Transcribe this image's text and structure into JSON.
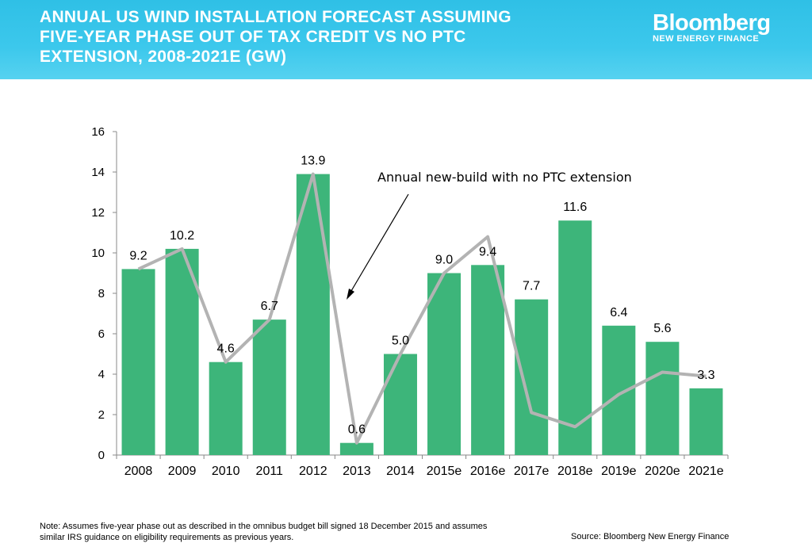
{
  "header": {
    "title_lines": [
      "ANNUAL US WIND INSTALLATION FORECAST ASSUMING",
      "FIVE-YEAR PHASE OUT OF TAX CREDIT VS NO PTC",
      "EXTENSION, 2008-2021E (GW)"
    ],
    "brand_name": "Bloomberg",
    "brand_sub": "NEW ENERGY FINANCE"
  },
  "chart_data": {
    "type": "bar",
    "title": "ANNUAL US WIND INSTALLATION FORECAST ASSUMING FIVE-YEAR PHASE OUT OF TAX CREDIT VS NO PTC EXTENSION, 2008-2021E (GW)",
    "categories": [
      "2008",
      "2009",
      "2010",
      "2011",
      "2012",
      "2013",
      "2014",
      "2015e",
      "2016e",
      "2017e",
      "2018e",
      "2019e",
      "2020e",
      "2021e"
    ],
    "series": [
      {
        "type": "bar",
        "values": [
          9.2,
          10.2,
          4.6,
          6.7,
          13.9,
          0.6,
          5.0,
          9.0,
          9.4,
          7.7,
          11.6,
          6.4,
          5.6,
          3.3
        ],
        "labels": [
          "9.2",
          "10.2",
          "4.6",
          "6.7",
          "13.9",
          "0.6",
          "5.0",
          "9.0",
          "9.4",
          "7.7",
          "11.6",
          "6.4",
          "5.6",
          "3.3"
        ],
        "color": "#3db57a"
      },
      {
        "type": "line",
        "name": "Annual new-build with no PTC extension",
        "values": [
          9.2,
          10.2,
          4.6,
          6.7,
          13.9,
          0.6,
          5.0,
          9.0,
          10.8,
          2.1,
          1.4,
          3.0,
          4.1,
          3.9
        ],
        "color": "#b3b3b3"
      }
    ],
    "y_ticks": [
      "0",
      "2",
      "4",
      "6",
      "8",
      "10",
      "12",
      "14",
      "16"
    ],
    "ylim": [
      0,
      16
    ],
    "annotation": "Annual new-build with no PTC extension",
    "grid": false
  },
  "footer": {
    "note_lines": [
      "Note: Assumes five-year phase out as described in the omnibus budget bill signed 18 December 2015 and assumes",
      "similar IRS guidance on eligibility requirements as previous years."
    ],
    "source": "Source: Bloomberg New Energy Finance"
  }
}
